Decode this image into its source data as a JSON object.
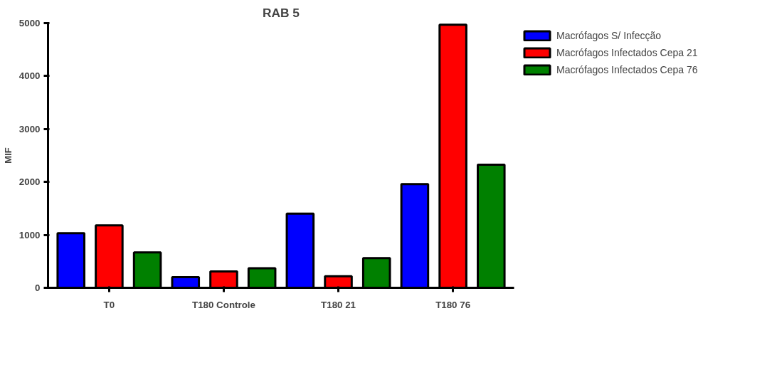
{
  "chart_data": {
    "type": "bar",
    "title": "RAB 5",
    "ylabel": "MIF",
    "categories": [
      "T0",
      "T180 Controle",
      "T180 21",
      "T180 76"
    ],
    "series": [
      {
        "name": "Macrófagos S/ Infecção",
        "color": "#0000ff",
        "values": [
          1030,
          200,
          1400,
          1960
        ]
      },
      {
        "name": "Macrófagos Infectados Cepa 21",
        "color": "#ff0000",
        "values": [
          1180,
          310,
          220,
          4970
        ]
      },
      {
        "name": "Macrófagos Infectados Cepa 76",
        "color": "#008000",
        "values": [
          670,
          370,
          560,
          2325
        ]
      }
    ],
    "ylim": [
      0,
      5000
    ],
    "yticks": [
      0,
      1000,
      2000,
      3000,
      4000,
      5000
    ],
    "grid": false,
    "legend": "top right"
  }
}
